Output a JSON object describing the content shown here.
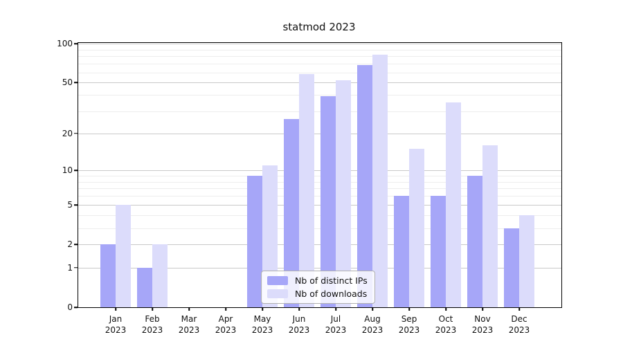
{
  "title": "statmod 2023",
  "colors": {
    "ips_bar": "#a6a6f8",
    "downloads_bar": "#dcdcfb",
    "grid_major": "#c9c9c9",
    "grid_minor": "#ededed",
    "axis": "#000000",
    "legend_border": "#b0b0b0"
  },
  "legend": {
    "items": [
      {
        "label": "Nb of distinct IPs",
        "series_key": "ips"
      },
      {
        "label": "Nb of downloads",
        "series_key": "downloads"
      }
    ]
  },
  "chart_data": {
    "type": "bar",
    "title": "statmod 2023",
    "categories": [
      "Jan 2023",
      "Feb 2023",
      "Mar 2023",
      "Apr 2023",
      "May 2023",
      "Jun 2023",
      "Jul 2023",
      "Aug 2023",
      "Sep 2023",
      "Oct 2023",
      "Nov 2023",
      "Dec 2023"
    ],
    "series": [
      {
        "name": "Nb of distinct IPs",
        "values": [
          2,
          1,
          0,
          0,
          9,
          26,
          39,
          68,
          6,
          6,
          9,
          3
        ]
      },
      {
        "name": "Nb of downloads",
        "values": [
          5,
          2,
          0,
          0,
          11,
          58,
          52,
          82,
          15,
          35,
          16,
          4
        ]
      }
    ],
    "xlabel": "",
    "ylabel": "",
    "yscale": "log1p",
    "ylim": [
      0,
      100
    ],
    "y_major_ticks": [
      0,
      1,
      2,
      5,
      10,
      20,
      50,
      100
    ],
    "y_minor_gridlines": [
      3,
      4,
      6,
      7,
      8,
      9,
      30,
      40,
      60,
      70,
      80,
      90
    ],
    "grid": "on",
    "legend_position": "lower center"
  }
}
